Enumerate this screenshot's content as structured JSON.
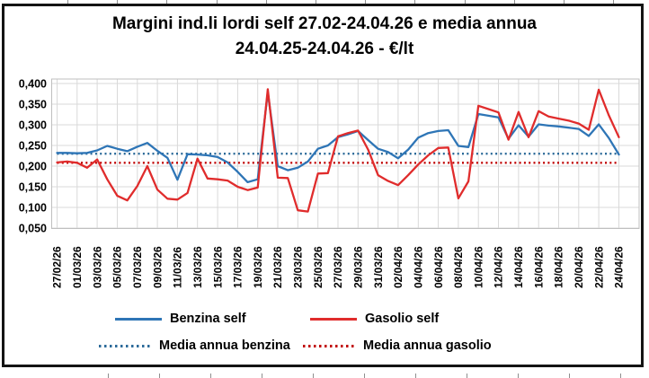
{
  "title": {
    "line1": "Margini ind.li lordi self 27.02-24.04.26 e media annua",
    "line2": "24.04.25-24.04.26 - €/lt"
  },
  "colors": {
    "benzina": "#2E75B6",
    "gasolio": "#E02C2C",
    "media_benzina": "#2B6A99",
    "media_gasolio": "#C00000",
    "grid": "#d9d9d9",
    "plot_border": "#bfbfbf"
  },
  "legend": {
    "benzina": "Benzina self",
    "gasolio": "Gasolio self",
    "media_benzina": "Media annua benzina",
    "media_gasolio": "Media annua gasolio"
  },
  "chart_data": {
    "type": "line",
    "title": "Margini ind.li lordi self 27.02-24.04.26 e media annua 24.04.25-24.04.26 - €/lt",
    "unit": "€/lt",
    "grid": true,
    "legend_position": "bottom",
    "ylim": [
      0.05,
      0.4
    ],
    "y_ticks": [
      0.4,
      0.35,
      0.3,
      0.25,
      0.2,
      0.15,
      0.1,
      0.05
    ],
    "y_tick_labels": [
      "0,400",
      "0,350",
      "0,300",
      "0,250",
      "0,200",
      "0,150",
      "0,100",
      "0,050"
    ],
    "x_labels": [
      "27/02/26",
      "01/03/26",
      "03/03/26",
      "05/03/26",
      "07/03/26",
      "09/03/26",
      "11/03/26",
      "13/03/26",
      "15/03/26",
      "17/03/26",
      "19/03/26",
      "21/03/26",
      "23/03/26",
      "25/03/26",
      "27/03/26",
      "29/03/26",
      "31/03/26",
      "02/04/26",
      "04/04/26",
      "06/04/26",
      "08/04/26",
      "10/04/26",
      "12/04/26",
      "14/04/26",
      "16/04/26",
      "18/04/26",
      "20/04/26",
      "22/04/26",
      "24/04/26"
    ],
    "x_label_interval_days": 2,
    "points_per_label": 2,
    "series": [
      {
        "name": "Benzina self",
        "style": "solid",
        "values": [
          0.232,
          0.232,
          0.231,
          0.232,
          0.238,
          0.249,
          0.242,
          0.236,
          0.247,
          0.256,
          0.237,
          0.22,
          0.167,
          0.229,
          0.228,
          0.226,
          0.222,
          0.209,
          0.186,
          0.161,
          0.168,
          0.379,
          0.2,
          0.19,
          0.196,
          0.211,
          0.242,
          0.25,
          0.27,
          0.277,
          0.285,
          0.263,
          0.242,
          0.234,
          0.219,
          0.24,
          0.269,
          0.28,
          0.285,
          0.287,
          0.249,
          0.246,
          0.326,
          0.322,
          0.318,
          0.266,
          0.299,
          0.271,
          0.301,
          0.298,
          0.296,
          0.293,
          0.29,
          0.273,
          0.301,
          0.268,
          0.228
        ]
      },
      {
        "name": "Gasolio self",
        "style": "solid",
        "values": [
          0.209,
          0.211,
          0.208,
          0.196,
          0.216,
          0.168,
          0.128,
          0.117,
          0.152,
          0.2,
          0.143,
          0.121,
          0.119,
          0.135,
          0.218,
          0.17,
          0.168,
          0.165,
          0.15,
          0.142,
          0.148,
          0.386,
          0.172,
          0.171,
          0.093,
          0.09,
          0.182,
          0.183,
          0.272,
          0.28,
          0.286,
          0.24,
          0.178,
          0.164,
          0.154,
          0.178,
          0.204,
          0.226,
          0.244,
          0.245,
          0.122,
          0.163,
          0.346,
          0.338,
          0.33,
          0.264,
          0.331,
          0.27,
          0.333,
          0.32,
          0.315,
          0.31,
          0.303,
          0.288,
          0.385,
          0.323,
          0.27
        ]
      },
      {
        "name": "Media annua benzina",
        "style": "dotted",
        "constant_value": 0.23
      },
      {
        "name": "Media annua gasolio",
        "style": "dotted",
        "constant_value": 0.208
      }
    ]
  }
}
